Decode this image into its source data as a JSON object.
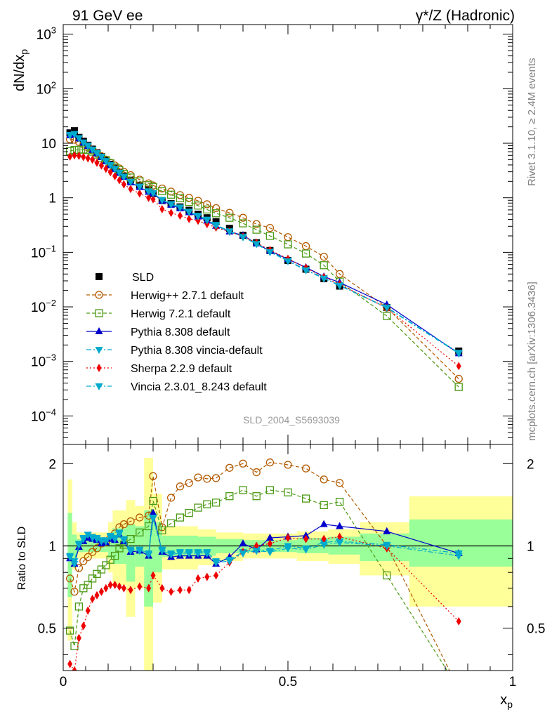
{
  "header": {
    "process": "91 GeV ee",
    "title_main": "γ*/Z (Hadronic)"
  },
  "side_notes": {
    "rivet": "Rivet 3.1.10, ≥ 2.4M events",
    "mcplots": "mcplots.cern.ch [arXiv:1306.3436]"
  },
  "analysis_id": "SLD_2004_S5693039",
  "chart_data": [
    {
      "type": "line",
      "panel": "main",
      "ylabel": "dN/dx_p",
      "xlabel": "x_p",
      "y_scale": "log",
      "xlim": [
        0,
        1
      ],
      "ylim": [
        3e-05,
        1500
      ],
      "yticks": [
        {
          "value": 1000,
          "label": "10^3"
        },
        {
          "value": 100,
          "label": "10^2"
        },
        {
          "value": 10,
          "label": "10"
        },
        {
          "value": 1,
          "label": "1"
        },
        {
          "value": 0.1,
          "label": "10^-1"
        },
        {
          "value": 0.01,
          "label": "10^-2"
        },
        {
          "value": 0.001,
          "label": "10^-3"
        },
        {
          "value": 0.0001,
          "label": "10^-4"
        }
      ],
      "x": [
        0.015,
        0.025,
        0.035,
        0.045,
        0.055,
        0.065,
        0.075,
        0.085,
        0.095,
        0.105,
        0.115,
        0.125,
        0.135,
        0.15,
        0.17,
        0.19,
        0.2,
        0.22,
        0.24,
        0.26,
        0.28,
        0.3,
        0.32,
        0.34,
        0.37,
        0.4,
        0.43,
        0.46,
        0.5,
        0.54,
        0.58,
        0.615,
        0.72,
        0.88
      ],
      "legend": {
        "position": "middle-left"
      },
      "series": [
        {
          "name": "SLD",
          "color": "#000000",
          "marker": "square-filled",
          "line": "none",
          "values": [
            15.5,
            17.0,
            12.8,
            10.9,
            9.2,
            7.8,
            6.7,
            5.7,
            4.85,
            4.1,
            3.5,
            2.95,
            2.5,
            2.1,
            1.7,
            1.43,
            1.2,
            0.89,
            0.78,
            0.68,
            0.59,
            0.5,
            0.43,
            0.365,
            0.275,
            0.205,
            0.15,
            0.108,
            0.071,
            0.049,
            0.033,
            0.024,
            0.0097,
            0.00155
          ]
        },
        {
          "name": "Herwig++ 2.7.1 default",
          "color": "#b35a00",
          "marker": "circle-open",
          "line": "dashed",
          "values": [
            11.8,
            11.6,
            10.6,
            9.5,
            8.3,
            7.4,
            6.5,
            5.8,
            5.0,
            4.4,
            3.9,
            3.45,
            3.0,
            2.6,
            2.15,
            1.84,
            1.68,
            1.48,
            1.3,
            1.12,
            1.0,
            0.88,
            0.76,
            0.645,
            0.53,
            0.43,
            0.33,
            0.28,
            0.19,
            0.13,
            0.083,
            0.04,
            0.0097,
            0.00048
          ]
        },
        {
          "name": "Herwig 7.2.1 default",
          "color": "#4d9a16",
          "marker": "square-open",
          "line": "dashed",
          "values": [
            7.2,
            7.5,
            7.6,
            7.7,
            7.5,
            7.0,
            6.2,
            5.4,
            4.9,
            4.3,
            3.6,
            3.2,
            2.75,
            2.35,
            2.0,
            1.7,
            1.58,
            1.32,
            1.14,
            0.98,
            0.84,
            0.72,
            0.61,
            0.52,
            0.43,
            0.34,
            0.26,
            0.2,
            0.14,
            0.095,
            0.058,
            0.029,
            0.0068,
            0.00034
          ]
        },
        {
          "name": "Pythia 8.308 default",
          "color": "#0000cc",
          "marker": "triangle-up-filled",
          "line": "solid",
          "values": [
            14.0,
            14.5,
            12.2,
            10.2,
            8.9,
            7.5,
            6.5,
            5.6,
            4.65,
            3.95,
            3.35,
            2.85,
            2.4,
            1.9,
            1.57,
            1.28,
            1.2,
            0.88,
            0.74,
            0.64,
            0.54,
            0.45,
            0.38,
            0.305,
            0.24,
            0.205,
            0.145,
            0.106,
            0.075,
            0.053,
            0.036,
            0.028,
            0.011,
            0.0014
          ]
        },
        {
          "name": "Pythia 8.308 vincia-default",
          "color": "#00aacc",
          "marker": "triangle-down-filled",
          "line": "dashdot",
          "values": [
            14.3,
            14.9,
            12.5,
            10.4,
            9.1,
            7.7,
            6.6,
            5.7,
            4.75,
            4.0,
            3.4,
            2.9,
            2.45,
            1.98,
            1.61,
            1.32,
            1.23,
            0.92,
            0.77,
            0.67,
            0.56,
            0.47,
            0.4,
            0.32,
            0.245,
            0.195,
            0.145,
            0.104,
            0.071,
            0.048,
            0.034,
            0.025,
            0.0098,
            0.00145
          ]
        },
        {
          "name": "Sherpa 2.2.9 default",
          "color": "#ee0000",
          "marker": "diamond-filled",
          "line": "dotted",
          "values": [
            5.7,
            6.0,
            5.9,
            5.6,
            5.3,
            5.0,
            4.4,
            3.9,
            3.4,
            2.95,
            2.5,
            2.1,
            1.76,
            1.45,
            1.2,
            1.0,
            0.94,
            0.62,
            0.53,
            0.47,
            0.41,
            0.38,
            0.33,
            0.285,
            0.24,
            0.195,
            0.15,
            0.11,
            0.076,
            0.052,
            0.035,
            0.026,
            0.0095,
            0.00082
          ]
        },
        {
          "name": "Vincia 2.3.01_8.243 default",
          "color": "#00aacc",
          "marker": "triangle-down-filled",
          "line": "dashdot",
          "values": [
            14.1,
            14.7,
            12.4,
            10.3,
            9.0,
            7.6,
            6.6,
            5.65,
            4.7,
            3.98,
            3.38,
            2.88,
            2.43,
            1.96,
            1.6,
            1.31,
            1.22,
            0.91,
            0.76,
            0.66,
            0.55,
            0.46,
            0.39,
            0.31,
            0.24,
            0.19,
            0.142,
            0.101,
            0.069,
            0.047,
            0.033,
            0.0245,
            0.0096,
            0.0014
          ]
        }
      ]
    },
    {
      "type": "line",
      "panel": "ratio",
      "ylabel": "Ratio to SLD",
      "xlabel": "x_p",
      "y_scale": "log",
      "xlim": [
        0,
        1
      ],
      "ylim": [
        0.35,
        2.35
      ],
      "yticks": [
        {
          "value": 0.5,
          "label": "0.5"
        },
        {
          "value": 1,
          "label": "1"
        },
        {
          "value": 2,
          "label": "2"
        }
      ],
      "xticks": [
        {
          "value": 0,
          "label": "0"
        },
        {
          "value": 0.5,
          "label": "0.5"
        },
        {
          "value": 1,
          "label": "1"
        }
      ],
      "x": [
        0.015,
        0.025,
        0.035,
        0.045,
        0.055,
        0.065,
        0.075,
        0.085,
        0.095,
        0.105,
        0.115,
        0.125,
        0.135,
        0.15,
        0.17,
        0.19,
        0.2,
        0.22,
        0.24,
        0.26,
        0.28,
        0.3,
        0.32,
        0.34,
        0.37,
        0.4,
        0.43,
        0.46,
        0.5,
        0.54,
        0.58,
        0.615,
        0.72,
        0.88
      ],
      "bands": [
        {
          "label": "2σ",
          "color": "#ffff99",
          "bins": [
            [
              0.01,
              0.02,
              0.45,
              1.75
            ],
            [
              0.02,
              0.03,
              0.82,
              1.22
            ],
            [
              0.03,
              0.1,
              0.9,
              1.12
            ],
            [
              0.1,
              0.11,
              0.8,
              1.22
            ],
            [
              0.11,
              0.14,
              0.72,
              1.35
            ],
            [
              0.14,
              0.16,
              0.55,
              1.47
            ],
            [
              0.16,
              0.18,
              0.7,
              1.4
            ],
            [
              0.18,
              0.2,
              0.35,
              2.1
            ],
            [
              0.2,
              0.22,
              0.62,
              1.55
            ],
            [
              0.22,
              0.3,
              0.82,
              1.18
            ],
            [
              0.3,
              0.34,
              0.85,
              1.15
            ],
            [
              0.34,
              0.4,
              0.88,
              1.12
            ],
            [
              0.4,
              0.52,
              0.9,
              1.11
            ],
            [
              0.52,
              0.59,
              0.88,
              1.13
            ],
            [
              0.59,
              0.66,
              0.86,
              1.15
            ],
            [
              0.66,
              0.77,
              0.78,
              1.22
            ],
            [
              0.77,
              1.0,
              0.6,
              1.52
            ]
          ]
        },
        {
          "label": "1σ",
          "color": "#99ff99",
          "bins": [
            [
              0.01,
              0.02,
              0.65,
              1.32
            ],
            [
              0.02,
              0.03,
              0.9,
              1.1
            ],
            [
              0.03,
              0.1,
              0.95,
              1.06
            ],
            [
              0.1,
              0.11,
              0.9,
              1.1
            ],
            [
              0.11,
              0.14,
              0.86,
              1.16
            ],
            [
              0.14,
              0.16,
              0.74,
              1.2
            ],
            [
              0.16,
              0.18,
              0.84,
              1.18
            ],
            [
              0.18,
              0.2,
              0.6,
              1.35
            ],
            [
              0.2,
              0.22,
              0.8,
              1.22
            ],
            [
              0.22,
              0.3,
              0.91,
              1.09
            ],
            [
              0.3,
              0.34,
              0.92,
              1.08
            ],
            [
              0.34,
              0.4,
              0.94,
              1.06
            ],
            [
              0.4,
              0.52,
              0.95,
              1.05
            ],
            [
              0.52,
              0.59,
              0.94,
              1.07
            ],
            [
              0.59,
              0.66,
              0.93,
              1.08
            ],
            [
              0.66,
              0.77,
              0.88,
              1.11
            ],
            [
              0.77,
              1.0,
              0.84,
              1.25
            ]
          ]
        }
      ],
      "series": [
        {
          "name": "Herwig++ 2.7.1 default",
          "color": "#b35a00",
          "marker": "circle-open",
          "line": "dashed",
          "values": [
            0.76,
            0.68,
            0.83,
            0.88,
            0.91,
            0.95,
            0.98,
            1.02,
            1.03,
            1.07,
            1.11,
            1.17,
            1.2,
            1.23,
            1.27,
            1.29,
            1.8,
            1.17,
            1.5,
            1.65,
            1.7,
            1.78,
            1.76,
            1.77,
            1.93,
            2.0,
            1.86,
            2.02,
            1.98,
            1.92,
            1.75,
            1.7,
            1.0,
            0.3
          ]
        },
        {
          "name": "Herwig 7.2.1 default",
          "color": "#4d9a16",
          "marker": "square-open",
          "line": "dashed",
          "values": [
            0.49,
            0.43,
            0.6,
            0.7,
            0.72,
            0.76,
            0.79,
            0.82,
            0.85,
            0.89,
            0.92,
            0.98,
            1.01,
            1.06,
            1.12,
            1.18,
            1.46,
            1.14,
            1.21,
            1.27,
            1.32,
            1.38,
            1.42,
            1.44,
            1.52,
            1.6,
            1.52,
            1.6,
            1.57,
            1.49,
            1.41,
            1.45,
            0.78,
            0.3
          ]
        },
        {
          "name": "Pythia 8.308 default",
          "color": "#0000cc",
          "marker": "triangle-up-filled",
          "line": "solid",
          "values": [
            0.9,
            0.86,
            0.99,
            1.04,
            1.07,
            1.06,
            1.05,
            1.02,
            1.03,
            1.06,
            1.05,
            1.1,
            1.04,
            0.95,
            0.96,
            0.92,
            1.32,
            0.95,
            0.91,
            0.92,
            0.92,
            0.92,
            0.92,
            0.86,
            0.91,
            1.02,
            0.97,
            1.07,
            1.08,
            1.09,
            1.2,
            1.18,
            1.13,
            0.94
          ]
        },
        {
          "name": "Pythia 8.308 vincia-default",
          "color": "#00aacc",
          "marker": "triangle-down-filled",
          "line": "dashdot",
          "values": [
            0.92,
            0.88,
            1.02,
            1.07,
            1.1,
            1.08,
            1.07,
            1.05,
            1.05,
            1.09,
            1.07,
            1.12,
            1.06,
            0.97,
            0.97,
            0.94,
            1.27,
            0.97,
            0.94,
            0.95,
            0.95,
            0.95,
            0.95,
            0.88,
            0.89,
            0.95,
            0.97,
            0.96,
            1.0,
            0.98,
            1.03,
            1.04,
            1.01,
            0.94
          ]
        },
        {
          "name": "Sherpa 2.2.9 default",
          "color": "#ee0000",
          "marker": "diamond-filled",
          "line": "dotted",
          "values": [
            0.37,
            0.35,
            0.46,
            0.51,
            0.58,
            0.64,
            0.66,
            0.68,
            0.7,
            0.72,
            0.72,
            0.71,
            0.7,
            0.69,
            0.71,
            0.7,
            0.78,
            0.7,
            0.68,
            0.69,
            0.69,
            0.76,
            0.77,
            0.78,
            0.87,
            0.95,
            1.0,
            1.02,
            1.07,
            1.06,
            1.06,
            1.08,
            0.98,
            0.53
          ]
        },
        {
          "name": "Vincia 2.3.01_8.243 default",
          "color": "#00aacc",
          "marker": "triangle-down-filled",
          "line": "dashdot",
          "values": [
            0.91,
            0.86,
            1.01,
            1.06,
            1.1,
            1.07,
            1.06,
            1.04,
            1.04,
            1.08,
            1.06,
            1.11,
            1.05,
            0.96,
            0.96,
            0.93,
            1.26,
            0.96,
            0.93,
            0.94,
            0.94,
            0.94,
            0.94,
            0.87,
            0.88,
            0.94,
            0.96,
            0.95,
            0.98,
            0.97,
            1.01,
            1.03,
            1.0,
            0.92
          ]
        }
      ]
    }
  ]
}
